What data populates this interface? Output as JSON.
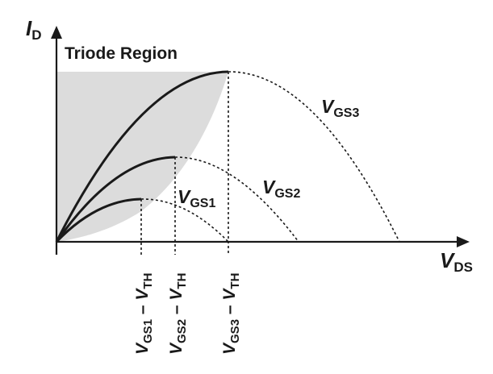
{
  "diagram": {
    "y_axis_label": {
      "main": "I",
      "sub": "D"
    },
    "x_axis_label": {
      "main": "V",
      "sub": "DS"
    },
    "region_label": "Triode Region",
    "curves": [
      {
        "label_main": "V",
        "label_sub": "GS1",
        "tick_label_main1": "V",
        "tick_label_sub1": "GS1",
        "tick_label_sep": " – ",
        "tick_label_main2": "V",
        "tick_label_sub2": "TH"
      },
      {
        "label_main": "V",
        "label_sub": "GS2",
        "tick_label_main1": "V",
        "tick_label_sub1": "GS2",
        "tick_label_sep": " – ",
        "tick_label_main2": "V",
        "tick_label_sub2": "TH"
      },
      {
        "label_main": "V",
        "label_sub": "GS3",
        "tick_label_main1": "V",
        "tick_label_sub1": "GS3",
        "tick_label_sep": " – ",
        "tick_label_main2": "V",
        "tick_label_sub2": "TH"
      }
    ],
    "colors": {
      "ink": "#1a1a1a",
      "region_fill": "#dcdcdc"
    }
  }
}
